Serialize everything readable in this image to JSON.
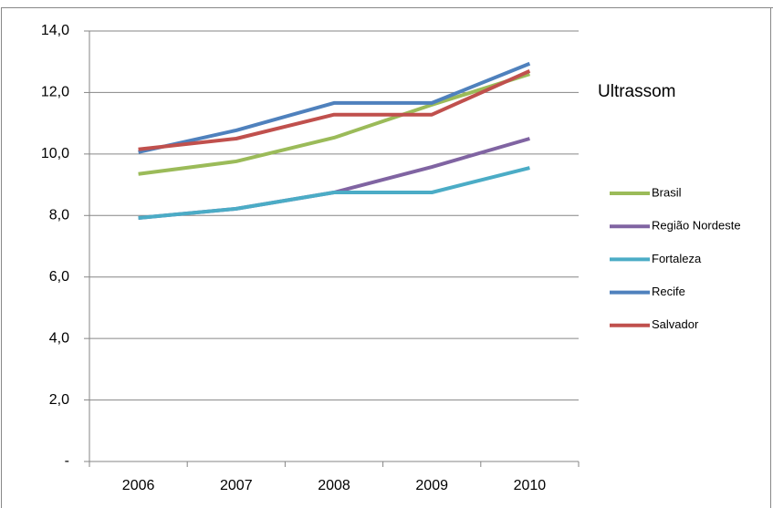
{
  "chart_data": {
    "type": "line",
    "title": "Ultrassom",
    "categories": [
      "2006",
      "2007",
      "2008",
      "2009",
      "2010"
    ],
    "series": [
      {
        "name": "Brasil",
        "color": "#9bbb59",
        "values": [
          9.35,
          9.76,
          10.53,
          11.6,
          12.6
        ]
      },
      {
        "name": "Região Nordeste",
        "color": "#8064a2",
        "values": [
          7.92,
          8.22,
          8.75,
          9.58,
          10.5
        ]
      },
      {
        "name": "Fortaleza",
        "color": "#4bacc6",
        "values": [
          7.92,
          8.22,
          8.75,
          8.75,
          9.55
        ]
      },
      {
        "name": "Recife",
        "color": "#4f81bd",
        "values": [
          10.06,
          10.77,
          11.66,
          11.66,
          12.94
        ]
      },
      {
        "name": "Salvador",
        "color": "#c0504d",
        "values": [
          10.15,
          10.5,
          11.28,
          11.28,
          12.7
        ]
      }
    ],
    "ylim": [
      0,
      14
    ],
    "yticks": [
      {
        "value": 0,
        "label": "-"
      },
      {
        "value": 2,
        "label": "2,0"
      },
      {
        "value": 4,
        "label": "4,0"
      },
      {
        "value": 6,
        "label": "6,0"
      },
      {
        "value": 8,
        "label": "8,0"
      },
      {
        "value": 10,
        "label": "10,0"
      },
      {
        "value": 12,
        "label": "12,0"
      },
      {
        "value": 14,
        "label": "14,0"
      }
    ],
    "grid": true,
    "legend": "right"
  }
}
